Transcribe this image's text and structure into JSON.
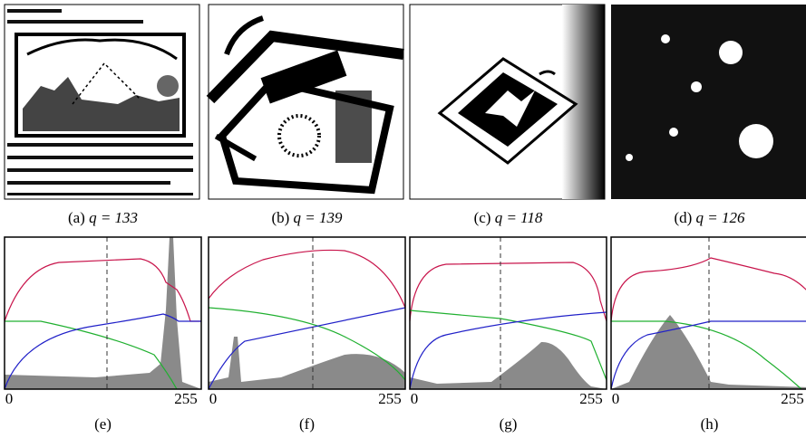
{
  "figure": {
    "images": [
      {
        "label": "(a)",
        "threshold": "q = 133"
      },
      {
        "label": "(b)",
        "threshold": "q = 139"
      },
      {
        "label": "(c)",
        "threshold": "q = 118"
      },
      {
        "label": "(d)",
        "threshold": "q = 126"
      }
    ],
    "plots": [
      {
        "label": "(e)",
        "x_min": "0",
        "x_max": "255"
      },
      {
        "label": "(f)",
        "x_min": "0",
        "x_max": "255"
      },
      {
        "label": "(g)",
        "x_min": "0",
        "x_max": "255"
      },
      {
        "label": "(h)",
        "x_min": "0",
        "x_max": "255"
      }
    ]
  }
}
